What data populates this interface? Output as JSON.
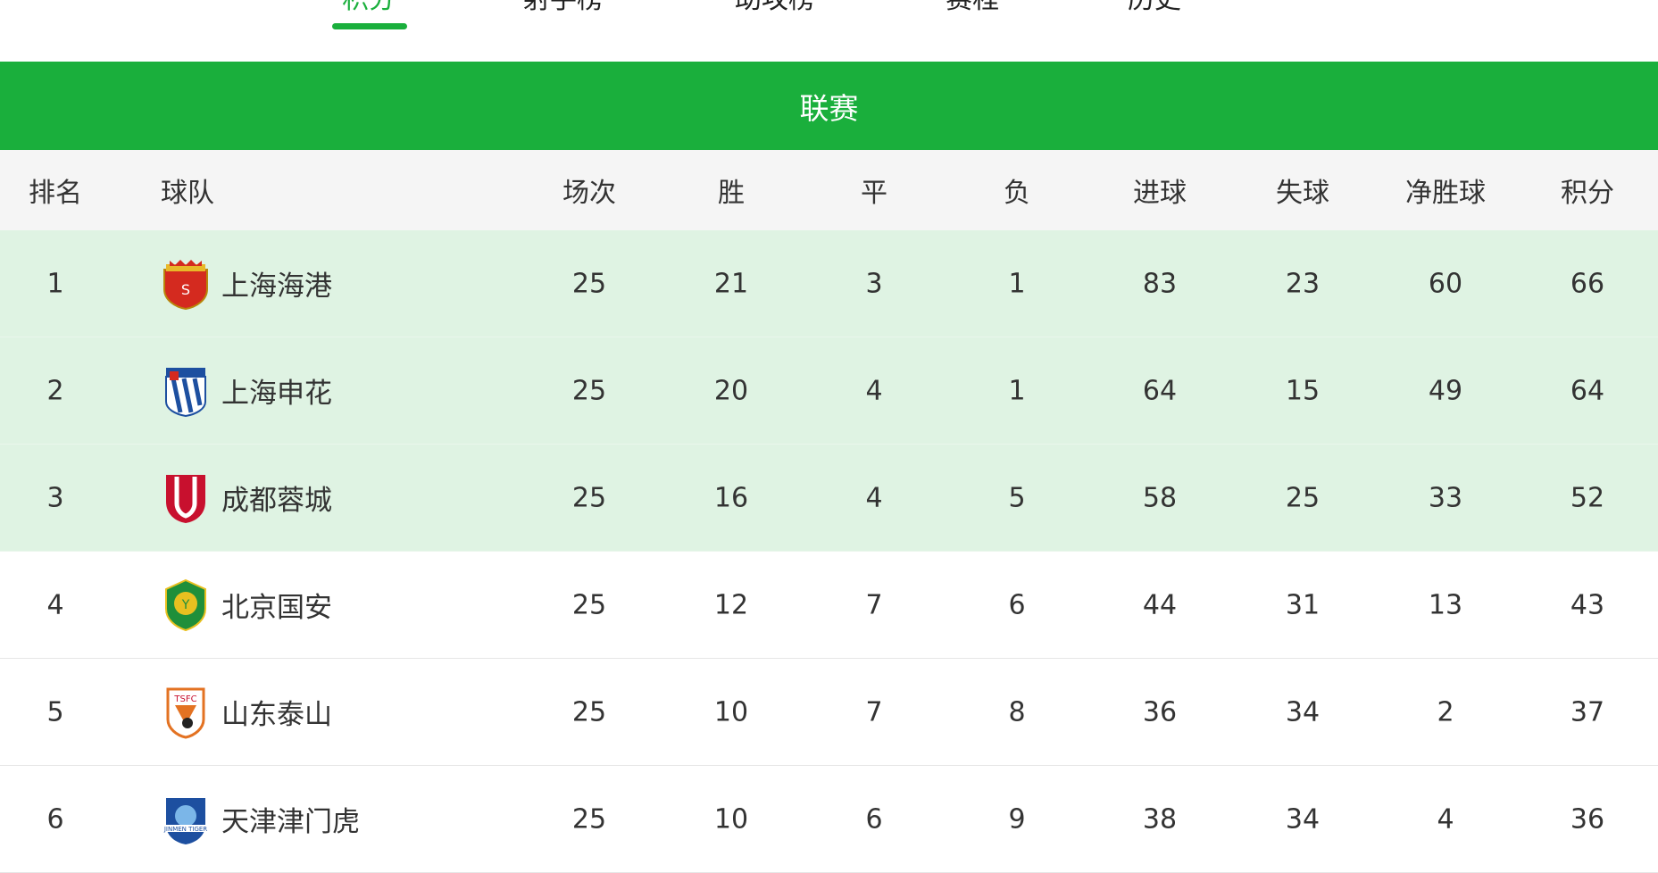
{
  "tabs": [
    "积分",
    "射手榜",
    "助攻榜",
    "赛程",
    "历史"
  ],
  "active_tab": "积分",
  "banner": "联赛",
  "columns": [
    "排名",
    "球队",
    "场次",
    "胜",
    "平",
    "负",
    "进球",
    "失球",
    "净胜球",
    "积分"
  ],
  "rows": [
    {
      "rank": "1",
      "team": "上海海港",
      "logo": "shanghai-port-logo",
      "played": "25",
      "won": "21",
      "drawn": "3",
      "lost": "1",
      "gf": "83",
      "ga": "23",
      "gd": "60",
      "pts": "66"
    },
    {
      "rank": "2",
      "team": "上海申花",
      "logo": "shanghai-shenhua-logo",
      "played": "25",
      "won": "20",
      "drawn": "4",
      "lost": "1",
      "gf": "64",
      "ga": "15",
      "gd": "49",
      "pts": "64"
    },
    {
      "rank": "3",
      "team": "成都蓉城",
      "logo": "chengdu-rongcheng-logo",
      "played": "25",
      "won": "16",
      "drawn": "4",
      "lost": "5",
      "gf": "58",
      "ga": "25",
      "gd": "33",
      "pts": "52"
    },
    {
      "rank": "4",
      "team": "北京国安",
      "logo": "beijing-guoan-logo",
      "played": "25",
      "won": "12",
      "drawn": "7",
      "lost": "6",
      "gf": "44",
      "ga": "31",
      "gd": "13",
      "pts": "43"
    },
    {
      "rank": "5",
      "team": "山东泰山",
      "logo": "shandong-taishan-logo",
      "played": "25",
      "won": "10",
      "drawn": "7",
      "lost": "8",
      "gf": "36",
      "ga": "34",
      "gd": "2",
      "pts": "37"
    },
    {
      "rank": "6",
      "team": "天津津门虎",
      "logo": "tianjin-jinmen-tiger-logo",
      "played": "25",
      "won": "10",
      "drawn": "6",
      "lost": "9",
      "gf": "38",
      "ga": "34",
      "gd": "4",
      "pts": "36"
    }
  ],
  "colors": {
    "accent": "#1aaf3c",
    "highlight_row": "#dff3e3",
    "header_bg": "#f5f5f5"
  }
}
